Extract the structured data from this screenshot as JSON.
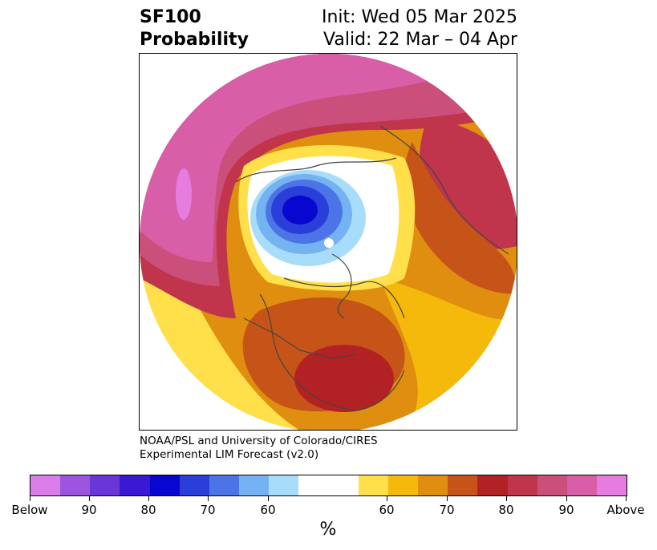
{
  "title": {
    "line1_left": "SF100",
    "line2_left": "Probability",
    "line1_right": "Init: Wed 05 Mar 2025",
    "line2_right": "Valid: 22 Mar – 04 Apr"
  },
  "credit": {
    "line1": "NOAA/PSL and University of Colorado/CIRES",
    "line2": "Experimental LIM Forecast (v2.0)"
  },
  "colorbar": {
    "unit": "%",
    "colors": [
      "#d97ee8",
      "#9d55e0",
      "#6a36d8",
      "#3a19d2",
      "#0707cf",
      "#2a3ed9",
      "#4c74e6",
      "#75b2f2",
      "#a8dcfb",
      "#ffffff",
      "#ffffff",
      "#ffe04a",
      "#f4b90a",
      "#e08e10",
      "#c65418",
      "#b22224",
      "#c0344c",
      "#cb4f7b",
      "#d85ea8",
      "#e67be0"
    ],
    "tick_labels": [
      "Below",
      "90",
      "80",
      "70",
      "60",
      "60",
      "70",
      "80",
      "90",
      "Above"
    ]
  },
  "map": {
    "projection": "north-polar",
    "regions": [
      {
        "name": "above-high-pacific-arctic",
        "color": "#d85ea8"
      },
      {
        "name": "above-high-north-atlantic-siberia",
        "color": "#c0344c"
      },
      {
        "name": "below-high-arctic-canada",
        "color": "#0707cf"
      },
      {
        "name": "above-high-eastern-us",
        "color": "#b22224"
      }
    ]
  }
}
